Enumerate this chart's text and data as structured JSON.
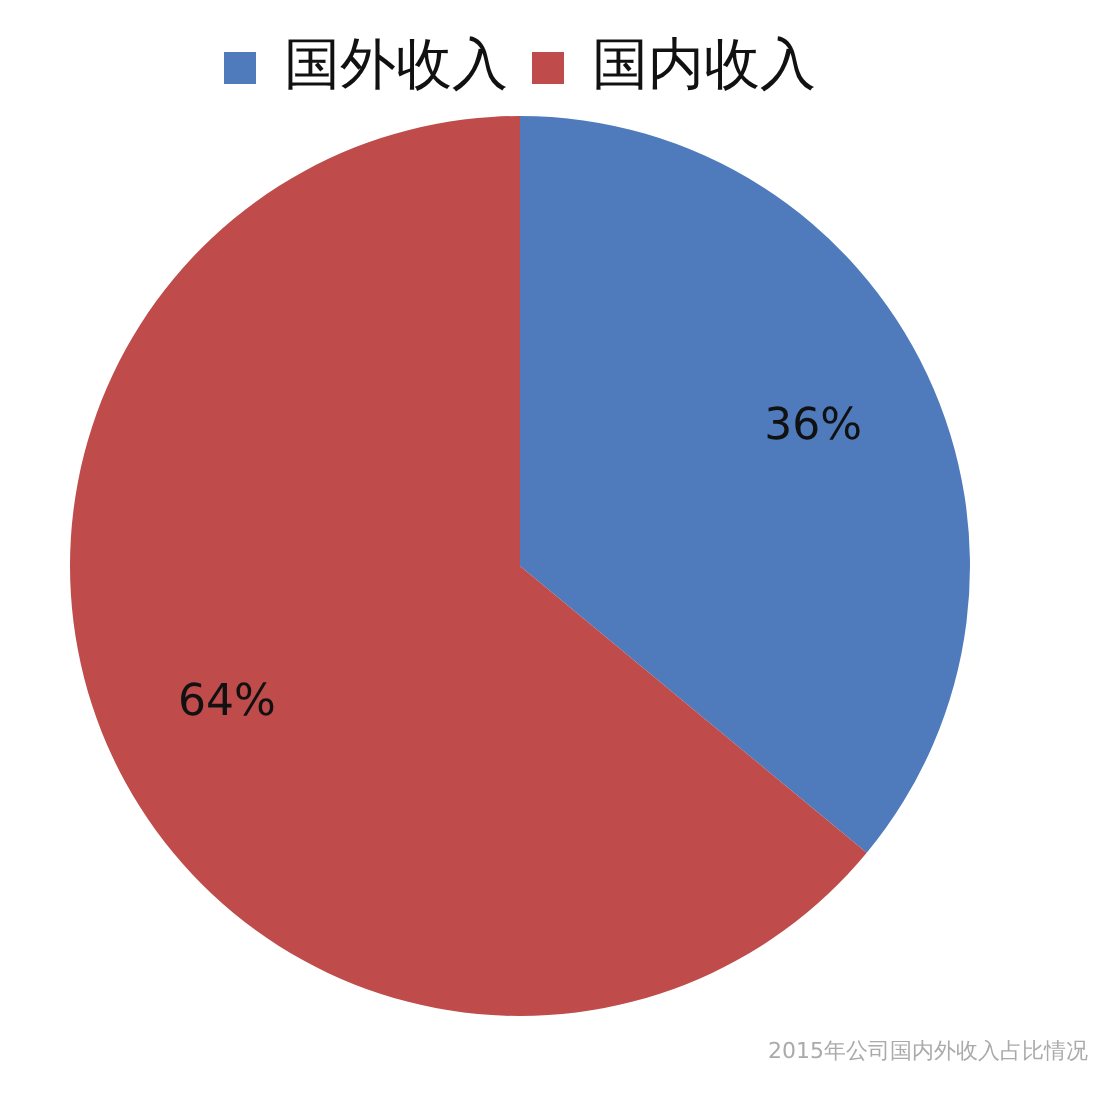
{
  "chart_data": {
    "type": "pie",
    "categories": [
      "国外收入",
      "国内收入"
    ],
    "values": [
      36,
      64
    ],
    "colors": [
      "#4f7bbd",
      "#bf4b4b"
    ],
    "value_labels": [
      "36%",
      "64%"
    ],
    "legend": "top",
    "annotations": [
      "2015年公司国内外收入占比情况"
    ]
  }
}
